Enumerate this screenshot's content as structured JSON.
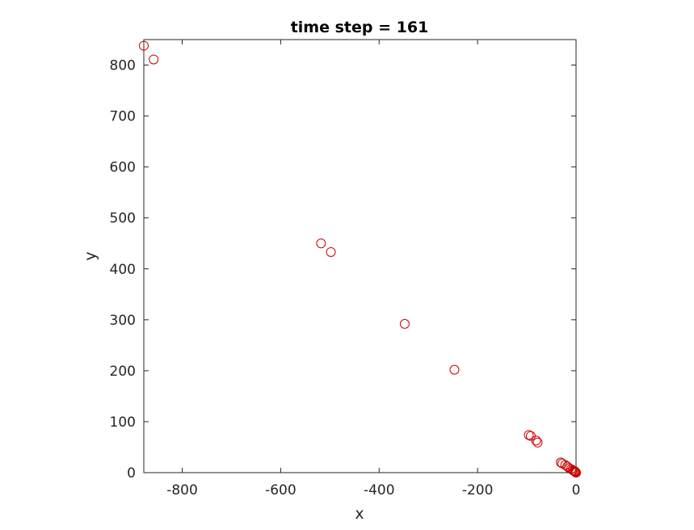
{
  "chart_data": {
    "type": "scatter",
    "title": "time step = 161",
    "xlabel": "x",
    "ylabel": "y",
    "xlim": [
      -878,
      0
    ],
    "ylim": [
      0,
      850
    ],
    "xticks": [
      -800,
      -600,
      -400,
      -200,
      0
    ],
    "xtick_labels": [
      "-800",
      "-600",
      "-400",
      "-200",
      "0"
    ],
    "yticks": [
      0,
      100,
      200,
      300,
      400,
      500,
      600,
      700,
      800
    ],
    "ytick_labels": [
      "0",
      "100",
      "200",
      "300",
      "400",
      "500",
      "600",
      "700",
      "800"
    ],
    "grid": false,
    "marker": "circle-open",
    "marker_color": "#cc0000",
    "series": [
      {
        "points": [
          {
            "x": -878,
            "y": 838
          },
          {
            "x": -858,
            "y": 811
          },
          {
            "x": -518,
            "y": 450
          },
          {
            "x": -498,
            "y": 433
          },
          {
            "x": -348,
            "y": 292
          },
          {
            "x": -247,
            "y": 202
          },
          {
            "x": -96,
            "y": 74
          },
          {
            "x": -92,
            "y": 72
          },
          {
            "x": -81,
            "y": 63
          },
          {
            "x": -78,
            "y": 59
          },
          {
            "x": -31,
            "y": 20
          },
          {
            "x": -28,
            "y": 18
          },
          {
            "x": -22,
            "y": 15
          },
          {
            "x": -18,
            "y": 12
          },
          {
            "x": -14,
            "y": 9
          },
          {
            "x": -10,
            "y": 7
          },
          {
            "x": -7,
            "y": 5
          },
          {
            "x": -5,
            "y": 4
          },
          {
            "x": -3,
            "y": 3
          },
          {
            "x": -2,
            "y": 2
          },
          {
            "x": -1,
            "y": 1
          },
          {
            "x": 0,
            "y": 0
          }
        ]
      }
    ]
  }
}
